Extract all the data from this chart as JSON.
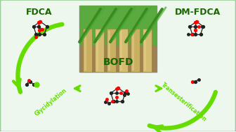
{
  "background_color": "#edf7ed",
  "fdca_label": "FDCA",
  "dm_fdca_label": "DM-FDCA",
  "bofd_label": "BOFD",
  "glycidylation_label": "Glycidylation",
  "transesterification_label": "Transesterification",
  "label_color": "#1a6600",
  "arrow_color": "#66dd00",
  "border_color": "#99cc99",
  "label_fontsize": 9,
  "bofd_fontsize": 10,
  "sub_label_fontsize": 5.5,
  "fig_width": 3.36,
  "fig_height": 1.89,
  "dpi": 100
}
